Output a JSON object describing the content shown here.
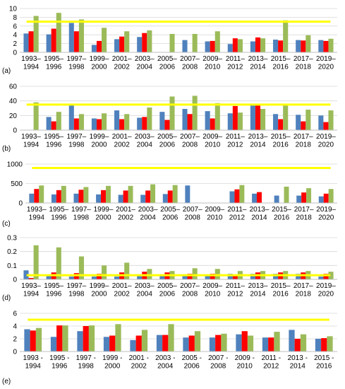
{
  "colors": {
    "series_1": "#4f81bd",
    "series_2": "#ff0000",
    "series_3": "#9bbb59",
    "threshold": "#ffff00",
    "grid": "#d9d9d9"
  },
  "chart_data": [
    {
      "type": "bar",
      "panel_label": "(a)",
      "categories": [
        [
          "1993–",
          "1994"
        ],
        [
          "1995–",
          "1996"
        ],
        [
          "1997–",
          "1998"
        ],
        [
          "1999–",
          "2000"
        ],
        [
          "2001–",
          "2002"
        ],
        [
          "2003–",
          "2004"
        ],
        [
          "2005–",
          "2006"
        ],
        [
          "2007–",
          "2008"
        ],
        [
          "2009–",
          "2010"
        ],
        [
          "2011–",
          "2012"
        ],
        [
          "2013–",
          "2014"
        ],
        [
          "2015–",
          "2016"
        ],
        [
          "2017–",
          "2018"
        ],
        [
          "2019–",
          "2020"
        ]
      ],
      "series": [
        {
          "values": [
            4.3,
            4.1,
            6.7,
            1.7,
            3.0,
            3.5,
            null,
            2.8,
            2.5,
            1.9,
            2.5,
            2.9,
            2.8,
            2.8
          ]
        },
        {
          "values": [
            4.8,
            5.4,
            4.8,
            2.6,
            3.6,
            4.4,
            null,
            null,
            2.6,
            3.2,
            3.4,
            2.7,
            2.7,
            2.6
          ]
        },
        {
          "values": [
            8.3,
            9.0,
            7.5,
            5.6,
            4.8,
            5.0,
            4.2,
            4.2,
            4.8,
            3.0,
            3.2,
            7.3,
            3.9,
            3.1
          ]
        }
      ],
      "threshold": 7,
      "ylim": [
        0,
        10
      ],
      "yticks": [
        0,
        2,
        4,
        6,
        8,
        10
      ],
      "grid": true
    },
    {
      "type": "bar",
      "panel_label": "(b)",
      "categories": [
        [
          "1993–",
          "1994"
        ],
        [
          "1995–",
          "1996"
        ],
        [
          "1997–",
          "1998"
        ],
        [
          "1999–",
          "2000"
        ],
        [
          "2001–",
          "2002"
        ],
        [
          "2003–",
          "2004"
        ],
        [
          "2005–",
          "2006"
        ],
        [
          "2007–",
          "2008"
        ],
        [
          "2009–",
          "2010"
        ],
        [
          "2011–",
          "2012"
        ],
        [
          "2013–",
          "2014"
        ],
        [
          "2015–",
          "2016"
        ],
        [
          "2017–",
          "2018"
        ],
        [
          "2019–",
          "2020"
        ]
      ],
      "series": [
        {
          "values": [
            null,
            18,
            34,
            16,
            27,
            17,
            25,
            29,
            26,
            23,
            34,
            22,
            21,
            20
          ]
        },
        {
          "values": [
            null,
            12,
            16,
            15,
            15,
            18,
            14,
            22,
            16,
            33,
            34,
            15,
            12,
            11
          ]
        },
        {
          "values": [
            38,
            25,
            22,
            23,
            22,
            31,
            46,
            47,
            37,
            24,
            29,
            34,
            28,
            27
          ]
        }
      ],
      "threshold": 35,
      "ylim": [
        0,
        60
      ],
      "yticks": [
        0,
        20,
        40,
        60
      ],
      "grid": true
    },
    {
      "type": "bar",
      "panel_label": "(c)",
      "categories": [
        [
          "1993–",
          "1994"
        ],
        [
          "1995–",
          "1996"
        ],
        [
          "1997–",
          "1998"
        ],
        [
          "1999–",
          "2000"
        ],
        [
          "2001–",
          "2002"
        ],
        [
          "2003–",
          "2004"
        ],
        [
          "2005–",
          "2006"
        ],
        [
          "2007–",
          "2008"
        ],
        [
          "2009–",
          "2010"
        ],
        [
          "2011–",
          "2012"
        ],
        [
          "2013–",
          "2014"
        ],
        [
          "2015–",
          "2016"
        ],
        [
          "2017–",
          "2018"
        ],
        [
          "2019–",
          "2020"
        ]
      ],
      "series": [
        {
          "values": [
            240,
            220,
            240,
            220,
            210,
            210,
            230,
            450,
            null,
            300,
            240,
            190,
            190,
            170
          ]
        },
        {
          "values": [
            360,
            330,
            340,
            330,
            320,
            320,
            320,
            null,
            null,
            350,
            280,
            null,
            270,
            240
          ]
        },
        {
          "values": [
            450,
            440,
            410,
            440,
            440,
            480,
            460,
            null,
            null,
            460,
            null,
            420,
            380,
            360
          ]
        }
      ],
      "threshold": 900,
      "ylim": [
        0,
        1000
      ],
      "yticks": [
        0,
        500,
        1000
      ],
      "grid": true
    },
    {
      "type": "bar",
      "panel_label": "(d)",
      "categories": [
        [
          "1993–",
          "1994"
        ],
        [
          "1995–",
          "1996"
        ],
        [
          "1997–",
          "1998"
        ],
        [
          "1999–",
          "2000"
        ],
        [
          "2001–",
          "2002"
        ],
        [
          "2003–",
          "2004"
        ],
        [
          "2005–",
          "2006"
        ],
        [
          "2007–",
          "2008"
        ],
        [
          "2009–",
          "2010"
        ],
        [
          "2011–",
          "2012"
        ],
        [
          "2013–",
          "2014"
        ],
        [
          "2015–",
          "2016"
        ],
        [
          "2017–",
          "2018"
        ],
        [
          "2019–",
          "2020"
        ]
      ],
      "series": [
        {
          "values": [
            0.065,
            0.03,
            0.02,
            0.02,
            0.02,
            0.03,
            0.03,
            0.03,
            0.03,
            0.04,
            0.04,
            0.04,
            0.04,
            0.02
          ]
        },
        {
          "values": [
            0.01,
            0.05,
            0.045,
            0.04,
            0.05,
            0.055,
            0.05,
            0.04,
            0.04,
            0.03,
            0.05,
            0.05,
            0.05,
            0.04
          ]
        },
        {
          "values": [
            0.245,
            0.23,
            0.165,
            0.1,
            0.12,
            0.075,
            0.06,
            0.08,
            0.075,
            0.06,
            0.06,
            0.06,
            0.06,
            0.055
          ]
        }
      ],
      "threshold": 0.03,
      "ylim": [
        0,
        0.3
      ],
      "yticks": [
        0,
        0.1,
        0.2,
        0.3
      ],
      "ytick_labels": [
        "0",
        "0.1",
        "0.2",
        "0.3"
      ],
      "grid": true
    },
    {
      "type": "bar",
      "panel_label": "(e)",
      "categories": [
        [
          "1993 -",
          "1994"
        ],
        [
          "1995 -",
          "1996"
        ],
        [
          "1997 -",
          "1998"
        ],
        [
          "1999 -",
          "2000"
        ],
        [
          "2001 -",
          "2002"
        ],
        [
          "2003 -",
          "2004"
        ],
        [
          "2005 -",
          "2006"
        ],
        [
          "2007 -",
          "2008"
        ],
        [
          "2009 -",
          "2010"
        ],
        [
          "2011 -",
          "2012"
        ],
        [
          "2013 -",
          "2014"
        ],
        [
          "2015 -",
          "2016"
        ]
      ],
      "series": [
        {
          "values": [
            3.5,
            2.3,
            3.2,
            2.3,
            1.8,
            2.6,
            2.2,
            2.2,
            2.7,
            2.2,
            3.4,
            2.0
          ]
        },
        {
          "values": [
            3.3,
            4.1,
            4.0,
            2.5,
            2.5,
            2.6,
            2.5,
            2.6,
            3.2,
            2.2,
            2.0,
            2.1
          ]
        },
        {
          "values": [
            3.7,
            4.1,
            4.1,
            4.3,
            3.4,
            4.3,
            3.2,
            2.8,
            2.5,
            3.1,
            2.7,
            2.4
          ]
        }
      ],
      "threshold": 5,
      "ylim": [
        0,
        6
      ],
      "yticks": [
        0,
        2,
        4,
        6
      ],
      "grid": true
    }
  ]
}
